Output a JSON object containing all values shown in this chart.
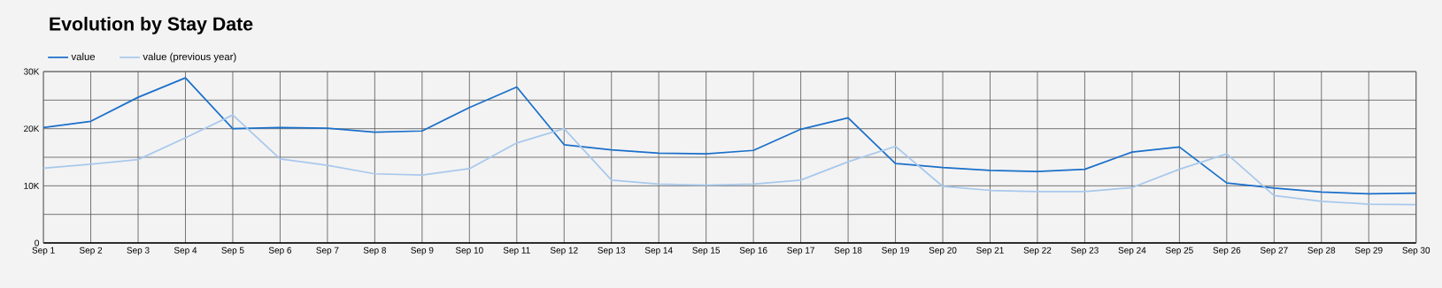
{
  "chart_data": {
    "type": "line",
    "title": "Evolution by Stay Date",
    "categories": [
      "Sep 1",
      "Sep 2",
      "Sep 3",
      "Sep 4",
      "Sep 5",
      "Sep 6",
      "Sep 7",
      "Sep 8",
      "Sep 9",
      "Sep 10",
      "Sep 11",
      "Sep 12",
      "Sep 13",
      "Sep 14",
      "Sep 15",
      "Sep 16",
      "Sep 17",
      "Sep 18",
      "Sep 19",
      "Sep 20",
      "Sep 21",
      "Sep 22",
      "Sep 23",
      "Sep 24",
      "Sep 25",
      "Sep 26",
      "Sep 27",
      "Sep 28",
      "Sep 29",
      "Sep 30"
    ],
    "series": [
      {
        "name": "value",
        "color": "#1a6fca",
        "values": [
          20200,
          21300,
          25500,
          28900,
          20000,
          20200,
          20100,
          19400,
          19600,
          23700,
          27300,
          17200,
          16300,
          15700,
          15600,
          16200,
          19900,
          21900,
          13900,
          13200,
          12700,
          12500,
          12900,
          15900,
          16800,
          10500,
          9600,
          8900,
          8600,
          8700
        ]
      },
      {
        "name": "value (previous year)",
        "color": "#a8c8ec",
        "values": [
          13100,
          13800,
          14600,
          18400,
          22400,
          14700,
          13600,
          12100,
          11900,
          13000,
          17500,
          20000,
          11000,
          10300,
          10100,
          10300,
          11000,
          14200,
          16900,
          9900,
          9200,
          9000,
          9000,
          9700,
          12900,
          15600,
          8300,
          7300,
          6800,
          6700
        ]
      }
    ],
    "ylim": [
      0,
      30000
    ],
    "yticks": [
      0,
      {
        "value": 5000,
        "label": null
      },
      {
        "value": 10000,
        "label": "10K"
      },
      {
        "value": 15000,
        "label": null
      },
      {
        "value": 20000,
        "label": "20K"
      },
      {
        "value": 25000,
        "label": null
      },
      {
        "value": 30000,
        "label": "30K"
      }
    ],
    "grid": true,
    "legend": "top left",
    "marker": "none",
    "line_style": "solid"
  }
}
